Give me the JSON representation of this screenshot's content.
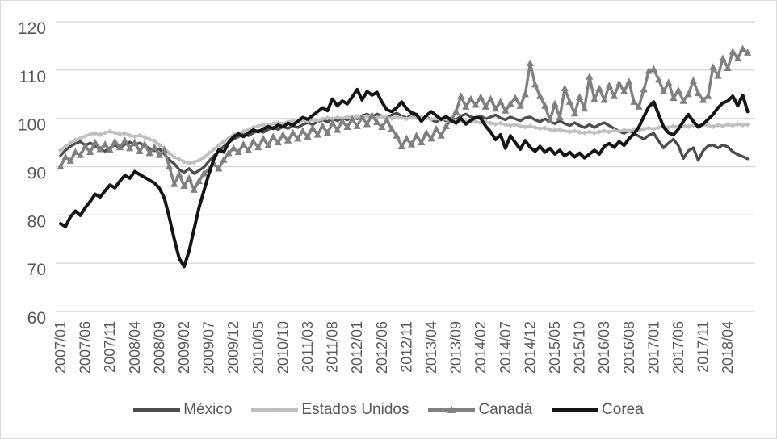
{
  "colors": {
    "background": "#ffffff",
    "border": "#d9d9d9",
    "gridline": "#d9d9d9",
    "axis_text": "#595959"
  },
  "chart_data": {
    "type": "line",
    "title": "",
    "grid": "horizontal",
    "legend_position": "bottom",
    "x_start": "2007/01",
    "x_end": "2018/08",
    "frequency": "monthly",
    "n_points": 140,
    "x_tick_interval": 5,
    "x_tick_labels": [
      "2007/01",
      "2007/06",
      "2007/11",
      "2008/04",
      "2008/09",
      "2009/02",
      "2009/07",
      "2009/12",
      "2010/05",
      "2010/10",
      "2011/03",
      "2011/08",
      "2012/01",
      "2012/06",
      "2012/11",
      "2013/04",
      "2013/09",
      "2014/02",
      "2014/07",
      "2014/12",
      "2015/05",
      "2015/10",
      "2016/03",
      "2016/08",
      "2017/01",
      "2017/06",
      "2017/11",
      "2018/04"
    ],
    "y_axis": {
      "min": 60,
      "max": 120,
      "step": 10,
      "tick_labels": [
        "120",
        "110",
        "100",
        "90",
        "80",
        "70",
        "60"
      ]
    },
    "series": [
      {
        "name": "México",
        "color": "#4d4d4d",
        "marker": "none",
        "values": [
          92.3,
          93.4,
          94.2,
          94.8,
          95.2,
          94.4,
          94.9,
          94.3,
          93.6,
          93.2,
          93.9,
          94.5,
          93.9,
          94.6,
          95.1,
          94.5,
          94.9,
          94.3,
          93.8,
          93.3,
          93.7,
          92.6,
          91.4,
          90.6,
          89.4,
          88.8,
          89.6,
          88.6,
          89.2,
          89.9,
          91.1,
          92.2,
          93.2,
          94.2,
          95.0,
          95.7,
          96.2,
          96.8,
          96.4,
          97.0,
          97.5,
          97.1,
          97.7,
          98.1,
          97.7,
          98.3,
          97.9,
          98.5,
          98.1,
          98.7,
          99.1,
          98.7,
          99.3,
          99.7,
          99.3,
          99.9,
          99.5,
          100.1,
          99.7,
          100.3,
          99.9,
          100.5,
          100.9,
          100.3,
          100.9,
          100.5,
          100.1,
          100.7,
          101.1,
          100.5,
          100.1,
          100.7,
          100.3,
          99.7,
          100.3,
          99.7,
          99.3,
          99.9,
          99.5,
          100.1,
          99.7,
          100.5,
          100.9,
          100.3,
          100.1,
          100.5,
          99.9,
          100.3,
          100.7,
          100.1,
          99.7,
          100.3,
          99.9,
          99.5,
          100.1,
          100.3,
          99.7,
          99.3,
          99.9,
          99.3,
          98.9,
          99.5,
          98.9,
          98.5,
          99.1,
          98.5,
          98.1,
          98.7,
          98.1,
          98.7,
          99.1,
          98.5,
          97.9,
          97.3,
          96.9,
          97.5,
          96.9,
          96.3,
          95.7,
          96.5,
          96.9,
          95.3,
          93.9,
          94.9,
          95.7,
          94.3,
          91.7,
          93.3,
          93.9,
          91.3,
          93.3,
          94.3,
          94.5,
          93.9,
          94.5,
          94.1,
          93.1,
          92.5,
          92.1,
          91.6
        ]
      },
      {
        "name": "Estados Unidos",
        "color": "#bfbfbf",
        "marker": "diamond",
        "values": [
          93.4,
          94.2,
          94.9,
          95.5,
          95.9,
          96.3,
          96.7,
          96.9,
          96.6,
          97.0,
          97.3,
          97.0,
          96.7,
          96.9,
          96.5,
          96.2,
          96.5,
          96.1,
          95.7,
          95.3,
          94.5,
          93.8,
          92.8,
          92.0,
          91.5,
          91.0,
          90.7,
          90.9,
          91.3,
          91.9,
          92.8,
          93.6,
          94.4,
          95.2,
          95.9,
          96.6,
          96.9,
          97.3,
          97.7,
          98.1,
          98.4,
          98.7,
          98.5,
          98.9,
          99.1,
          98.9,
          99.3,
          99.5,
          99.3,
          99.6,
          99.4,
          99.7,
          99.5,
          99.9,
          100.1,
          99.9,
          100.2,
          100.0,
          100.3,
          100.1,
          100.4,
          100.2,
          100.5,
          100.3,
          100.1,
          100.4,
          100.2,
          100.0,
          100.3,
          100.1,
          99.9,
          100.2,
          100.1,
          100.3,
          100.0,
          99.8,
          100.0,
          99.7,
          99.9,
          99.6,
          99.4,
          99.6,
          99.3,
          99.5,
          99.3,
          99.1,
          99.3,
          99.0,
          98.8,
          99.0,
          98.7,
          98.5,
          98.7,
          98.4,
          98.2,
          98.4,
          98.1,
          97.9,
          98.0,
          97.7,
          97.5,
          97.7,
          97.4,
          97.2,
          97.4,
          97.1,
          97.0,
          97.2,
          97.0,
          97.2,
          97.4,
          97.2,
          97.5,
          97.3,
          97.6,
          97.4,
          97.7,
          97.5,
          97.8,
          98.0,
          97.8,
          98.1,
          98.3,
          98.1,
          98.4,
          98.2,
          98.5,
          98.3,
          98.6,
          98.4,
          98.7,
          98.5,
          98.3,
          98.6,
          98.4,
          98.7,
          98.5,
          98.8,
          98.6,
          98.7
        ]
      },
      {
        "name": "Canadá",
        "color": "#808080",
        "marker": "triangle",
        "values": [
          90.0,
          92.0,
          91.2,
          93.0,
          92.4,
          94.2,
          93.0,
          95.0,
          93.6,
          94.6,
          93.4,
          95.2,
          94.0,
          95.4,
          93.8,
          95.0,
          93.2,
          94.6,
          92.8,
          94.0,
          92.4,
          93.4,
          90.0,
          86.4,
          88.4,
          86.0,
          87.6,
          85.2,
          87.0,
          88.6,
          89.4,
          90.6,
          89.6,
          91.4,
          92.8,
          93.8,
          93.0,
          94.6,
          93.4,
          95.2,
          94.0,
          95.8,
          94.4,
          96.2,
          95.0,
          96.6,
          95.4,
          97.0,
          95.8,
          97.4,
          96.2,
          98.0,
          96.6,
          98.4,
          97.0,
          99.0,
          97.6,
          99.4,
          98.2,
          99.8,
          98.4,
          100.2,
          98.8,
          100.6,
          99.2,
          98.2,
          99.6,
          97.8,
          96.4,
          94.2,
          95.8,
          94.6,
          96.4,
          95.0,
          97.0,
          95.8,
          97.8,
          96.4,
          98.4,
          99.6,
          101.4,
          104.6,
          102.4,
          104.0,
          102.8,
          104.4,
          102.4,
          104.0,
          102.0,
          103.4,
          101.6,
          103.0,
          104.2,
          102.6,
          105.0,
          111.4,
          107.0,
          104.6,
          102.6,
          99.6,
          103.0,
          100.2,
          106.2,
          103.4,
          101.0,
          104.4,
          102.0,
          108.6,
          104.0,
          106.2,
          103.8,
          106.8,
          104.6,
          107.2,
          105.6,
          107.6,
          103.4,
          102.4,
          106.0,
          109.8,
          110.2,
          108.0,
          105.6,
          107.4,
          104.2,
          105.8,
          103.6,
          105.0,
          107.8,
          105.2,
          103.8,
          104.6,
          110.6,
          108.8,
          112.4,
          110.4,
          113.8,
          112.4,
          114.4,
          113.6
        ]
      },
      {
        "name": "Corea",
        "color": "#151515",
        "marker": "none",
        "values": [
          78.2,
          77.6,
          79.6,
          80.8,
          79.9,
          81.5,
          82.8,
          84.3,
          83.7,
          85.0,
          86.2,
          85.6,
          87.0,
          88.2,
          87.6,
          89.0,
          88.4,
          87.8,
          87.2,
          86.6,
          85.5,
          83.5,
          79.5,
          75.0,
          71.0,
          69.3,
          72.5,
          77.0,
          81.5,
          85.0,
          88.5,
          91.5,
          93.5,
          93.0,
          95.0,
          96.2,
          96.8,
          96.2,
          97.0,
          97.6,
          97.2,
          97.8,
          98.3,
          97.9,
          98.6,
          98.2,
          99.0,
          98.6,
          99.4,
          100.2,
          99.8,
          100.6,
          101.4,
          102.2,
          101.6,
          104.0,
          102.6,
          103.6,
          103.0,
          104.4,
          106.0,
          103.8,
          105.6,
          104.8,
          105.4,
          103.4,
          101.8,
          101.4,
          102.2,
          103.4,
          102.0,
          101.2,
          100.8,
          99.4,
          100.6,
          101.4,
          100.6,
          99.8,
          100.4,
          99.6,
          99.0,
          100.0,
          98.8,
          99.6,
          100.2,
          100.0,
          98.4,
          97.2,
          95.6,
          96.6,
          93.8,
          96.4,
          95.0,
          93.6,
          95.4,
          94.0,
          93.2,
          94.2,
          93.0,
          93.8,
          92.6,
          93.4,
          92.2,
          93.0,
          92.0,
          92.8,
          91.8,
          92.6,
          93.4,
          92.6,
          94.2,
          94.8,
          94.0,
          95.2,
          94.4,
          95.8,
          96.8,
          98.2,
          100.4,
          102.4,
          103.4,
          100.8,
          98.2,
          97.0,
          96.6,
          97.8,
          99.4,
          100.8,
          99.4,
          98.2,
          98.8,
          99.8,
          100.8,
          102.2,
          103.2,
          103.6,
          104.6,
          102.6,
          104.8,
          101.4
        ]
      }
    ]
  }
}
